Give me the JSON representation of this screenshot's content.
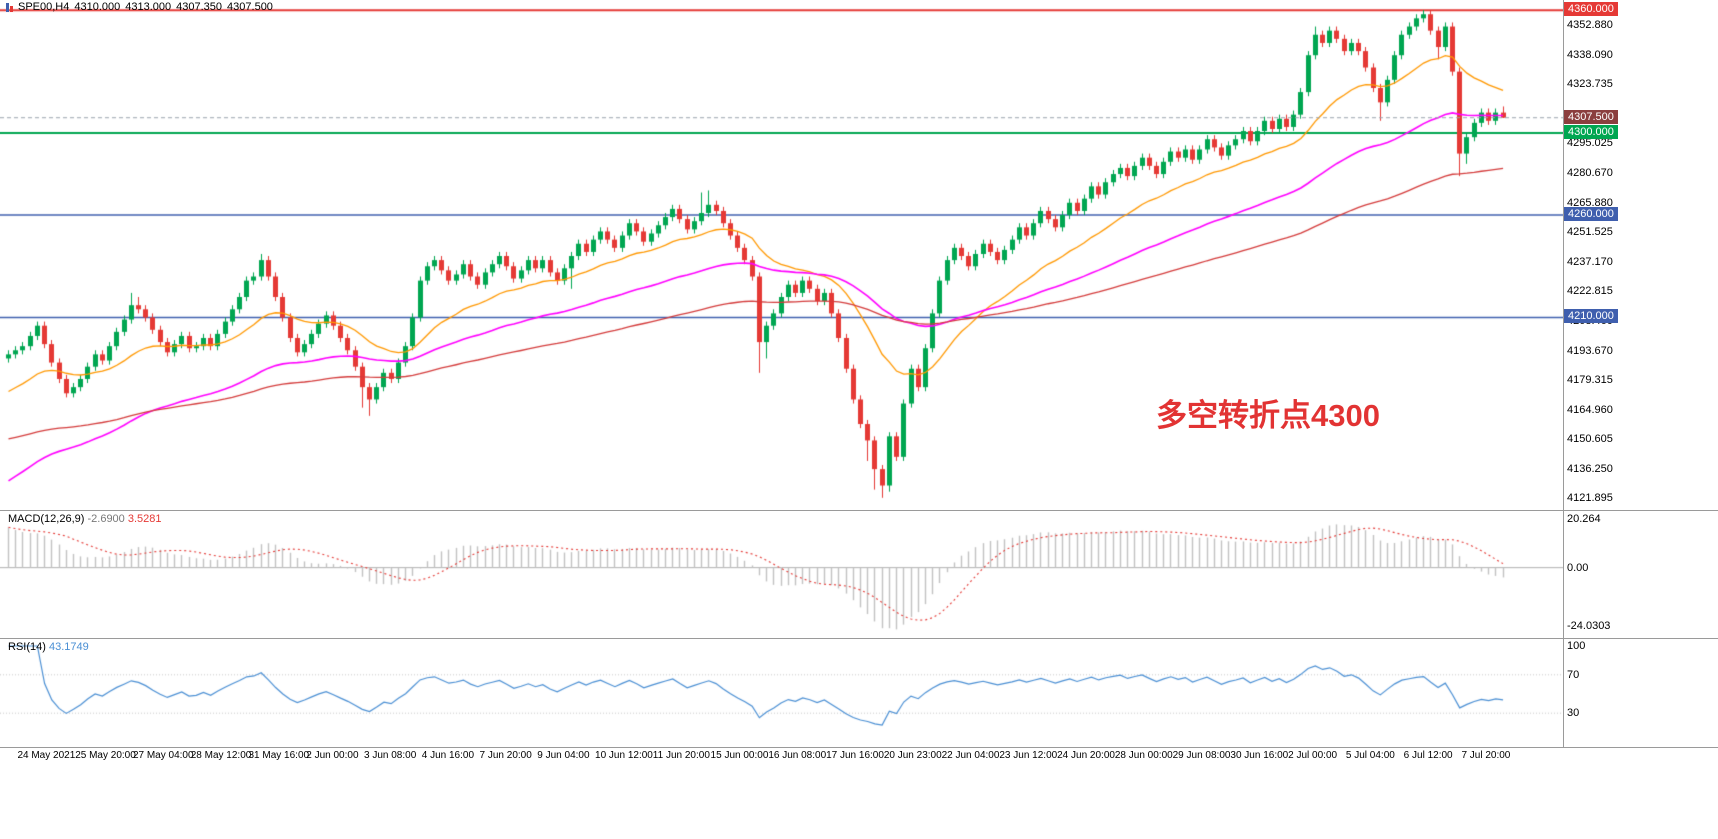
{
  "window": {
    "symbol_period": "SPE00,H4",
    "ohlc": {
      "open": "4310.000",
      "high": "4313.000",
      "low": "4307.350",
      "close": "4307.500"
    }
  },
  "annotation": {
    "text": "多空转折点4300",
    "color": "#e23333"
  },
  "colors": {
    "up_candle": "#00a651",
    "down_candle": "#e53935",
    "ma_fast": "#ff9800",
    "ma_mid": "#ff00ff",
    "ma_slow": "#d43b3b",
    "hline_red": "#e53935",
    "hline_green": "#00a651",
    "hline_blue": "#3f5fae",
    "bid_line": "#9aa4ae",
    "current_tag_bg": "#8b3e3e",
    "macd_hist": "#c2c2c2",
    "macd_signal": "#e53935",
    "rsi_line": "#4a8fd4",
    "separator": "#9a9a9a"
  },
  "price_axis": {
    "labels": [
      "4352.880",
      "4338.090",
      "4323.735",
      "4295.025",
      "4280.670",
      "4265.880",
      "4251.525",
      "4237.170",
      "4222.815",
      "4208.460",
      "4193.670",
      "4179.315",
      "4164.960",
      "4150.605",
      "4136.250",
      "4121.895"
    ],
    "tags": [
      {
        "text": "4360.000",
        "value": 4360,
        "type": "resistance-line-tag",
        "color": "#e53935"
      },
      {
        "text": "4307.500",
        "value": 4307.5,
        "type": "current-price-tag",
        "color": "#8b3e3e"
      },
      {
        "text": "4300.000",
        "value": 4300,
        "type": "pivot-line-tag",
        "color": "#00a651"
      },
      {
        "text": "4260.000",
        "value": 4260,
        "type": "support-line-tag",
        "color": "#3f5fae"
      },
      {
        "text": "4210.000",
        "value": 4210,
        "type": "support-line-tag",
        "color": "#3f5fae"
      }
    ]
  },
  "time_axis": {
    "labels": [
      "24 May 2021",
      "25 May 20:00",
      "27 May 04:00",
      "28 May 12:00",
      "31 May 16:00",
      "2 Jun 00:00",
      "3 Jun 08:00",
      "4 Jun 16:00",
      "7 Jun 20:00",
      "9 Jun 04:00",
      "10 Jun 12:00",
      "11 Jun 20:00",
      "15 Jun 00:00",
      "16 Jun 08:00",
      "17 Jun 16:00",
      "20 Jun 23:00",
      "22 Jun 04:00",
      "23 Jun 12:00",
      "24 Jun 20:00",
      "28 Jun 00:00",
      "29 Jun 08:00",
      "30 Jun 16:00",
      "2 Jul 00:00",
      "5 Jul 04:00",
      "6 Jul 12:00",
      "7 Jul 20:00"
    ]
  },
  "macd_pane": {
    "label": "MACD(12,26,9)",
    "main_value": "-2.6900",
    "signal_value": "3.5281",
    "axis_labels": [
      "20.264",
      "0.00",
      "-24.0303"
    ]
  },
  "rsi_pane": {
    "label": "RSI(14)",
    "value": "43.1749",
    "axis_labels": [
      "100",
      "70",
      "30"
    ]
  },
  "chart_data": {
    "type": "candlestick",
    "symbol": "SPE00",
    "timeframe": "H4",
    "title": "SPE00,H4 4310.000 4313.000 4307.350 4307.500",
    "ylim": [
      4118,
      4363
    ],
    "grid": false,
    "time_labels_every": 8,
    "first_label_index": 2,
    "hlines": [
      {
        "price": 4360,
        "color": "#e53935",
        "width": 2,
        "dash": false
      },
      {
        "price": 4307.5,
        "color": "#9aa4ae",
        "width": 1,
        "dash": true
      },
      {
        "price": 4300,
        "color": "#00a651",
        "width": 2,
        "dash": false
      },
      {
        "price": 4260,
        "color": "#3f5fae",
        "width": 1.5,
        "dash": false
      },
      {
        "price": 4210,
        "color": "#3f5fae",
        "width": 1.5,
        "dash": false
      }
    ],
    "moving_averages": [
      {
        "period": 20,
        "seed": 4172,
        "color": "#ff9800",
        "width": 1.3
      },
      {
        "period": 55,
        "seed": 4128,
        "color": "#ff00ff",
        "width": 1.6
      },
      {
        "period": 110,
        "seed": 4150,
        "color": "#d43b3b",
        "width": 1.3
      }
    ],
    "indicators": [
      {
        "type": "MACD",
        "fast": 12,
        "slow": 26,
        "signal": 9,
        "seed_fast": 4192,
        "seed_slow": 4174,
        "current_main": -2.69,
        "current_signal": 3.5281,
        "axis_range": [
          -24.0303,
          20.264
        ]
      },
      {
        "type": "RSI",
        "period": 14,
        "current": 43.1749,
        "levels": [
          70,
          30
        ],
        "axis_range": [
          0,
          100
        ]
      }
    ],
    "candles": [
      [
        4190,
        4194,
        4188,
        4192
      ],
      [
        4192,
        4196,
        4190,
        4194
      ],
      [
        4194,
        4198,
        4192,
        4196
      ],
      [
        4196,
        4203,
        4194,
        4201
      ],
      [
        4201,
        4208,
        4199,
        4206
      ],
      [
        4206,
        4208,
        4195,
        4197
      ],
      [
        4197,
        4199,
        4186,
        4188
      ],
      [
        4188,
        4190,
        4178,
        4180
      ],
      [
        4180,
        4182,
        4171,
        4173
      ],
      [
        4173,
        4178,
        4171,
        4176
      ],
      [
        4176,
        4182,
        4174,
        4180
      ],
      [
        4180,
        4188,
        4178,
        4186
      ],
      [
        4186,
        4194,
        4184,
        4192
      ],
      [
        4192,
        4194,
        4187,
        4189
      ],
      [
        4189,
        4198,
        4187,
        4196
      ],
      [
        4196,
        4205,
        4194,
        4203
      ],
      [
        4203,
        4211,
        4201,
        4209
      ],
      [
        4209,
        4222,
        4207,
        4216
      ],
      [
        4216,
        4220,
        4212,
        4214
      ],
      [
        4214,
        4216,
        4208,
        4210
      ],
      [
        4210,
        4212,
        4202,
        4204
      ],
      [
        4204,
        4206,
        4196,
        4198
      ],
      [
        4198,
        4200,
        4191,
        4193
      ],
      [
        4193,
        4199,
        4191,
        4197
      ],
      [
        4197,
        4203,
        4195,
        4201
      ],
      [
        4201,
        4203,
        4193,
        4195
      ],
      [
        4195,
        4198,
        4193,
        4196
      ],
      [
        4196,
        4202,
        4194,
        4200
      ],
      [
        4200,
        4202,
        4194,
        4196
      ],
      [
        4196,
        4204,
        4194,
        4202
      ],
      [
        4202,
        4210,
        4200,
        4208
      ],
      [
        4208,
        4216,
        4206,
        4214
      ],
      [
        4214,
        4222,
        4212,
        4220
      ],
      [
        4220,
        4230,
        4218,
        4228
      ],
      [
        4228,
        4232,
        4226,
        4230
      ],
      [
        4230,
        4241,
        4228,
        4238
      ],
      [
        4238,
        4240,
        4228,
        4230
      ],
      [
        4230,
        4232,
        4218,
        4220
      ],
      [
        4220,
        4222,
        4208,
        4210
      ],
      [
        4210,
        4212,
        4198,
        4200
      ],
      [
        4200,
        4202,
        4191,
        4193
      ],
      [
        4193,
        4199,
        4191,
        4197
      ],
      [
        4197,
        4204,
        4195,
        4202
      ],
      [
        4202,
        4209,
        4200,
        4207
      ],
      [
        4207,
        4213,
        4205,
        4211
      ],
      [
        4211,
        4213,
        4204,
        4206
      ],
      [
        4206,
        4208,
        4198,
        4200
      ],
      [
        4200,
        4202,
        4192,
        4194
      ],
      [
        4194,
        4196,
        4184,
        4186
      ],
      [
        4186,
        4188,
        4166,
        4176
      ],
      [
        4176,
        4178,
        4162,
        4170
      ],
      [
        4170,
        4178,
        4168,
        4176
      ],
      [
        4176,
        4185,
        4174,
        4183
      ],
      [
        4183,
        4185,
        4178,
        4180
      ],
      [
        4180,
        4190,
        4178,
        4188
      ],
      [
        4188,
        4198,
        4186,
        4196
      ],
      [
        4196,
        4212,
        4194,
        4210
      ],
      [
        4210,
        4230,
        4208,
        4228
      ],
      [
        4228,
        4237,
        4226,
        4235
      ],
      [
        4235,
        4240,
        4233,
        4238
      ],
      [
        4238,
        4240,
        4231,
        4233
      ],
      [
        4233,
        4235,
        4226,
        4228
      ],
      [
        4228,
        4233,
        4226,
        4231
      ],
      [
        4231,
        4238,
        4229,
        4236
      ],
      [
        4236,
        4238,
        4228,
        4230
      ],
      [
        4230,
        4232,
        4224,
        4226
      ],
      [
        4226,
        4234,
        4224,
        4232
      ],
      [
        4232,
        4238,
        4230,
        4236
      ],
      [
        4236,
        4242,
        4234,
        4240
      ],
      [
        4240,
        4242,
        4233,
        4235
      ],
      [
        4235,
        4237,
        4227,
        4229
      ],
      [
        4229,
        4235,
        4227,
        4233
      ],
      [
        4233,
        4240,
        4231,
        4238
      ],
      [
        4238,
        4240,
        4232,
        4234
      ],
      [
        4234,
        4240,
        4232,
        4238
      ],
      [
        4238,
        4240,
        4230,
        4232
      ],
      [
        4232,
        4234,
        4226,
        4228
      ],
      [
        4228,
        4236,
        4226,
        4234
      ],
      [
        4234,
        4242,
        4224,
        4240
      ],
      [
        4240,
        4248,
        4238,
        4246
      ],
      [
        4246,
        4248,
        4240,
        4242
      ],
      [
        4242,
        4250,
        4240,
        4248
      ],
      [
        4248,
        4254,
        4246,
        4252
      ],
      [
        4252,
        4254,
        4246,
        4248
      ],
      [
        4248,
        4250,
        4242,
        4244
      ],
      [
        4244,
        4252,
        4242,
        4250
      ],
      [
        4250,
        4258,
        4248,
        4256
      ],
      [
        4256,
        4258,
        4250,
        4252
      ],
      [
        4252,
        4254,
        4245,
        4247
      ],
      [
        4247,
        4253,
        4245,
        4251
      ],
      [
        4251,
        4257,
        4249,
        4255
      ],
      [
        4255,
        4261,
        4253,
        4259
      ],
      [
        4259,
        4265,
        4257,
        4263
      ],
      [
        4263,
        4265,
        4256,
        4258
      ],
      [
        4258,
        4260,
        4251,
        4253
      ],
      [
        4253,
        4259,
        4251,
        4257
      ],
      [
        4257,
        4271,
        4255,
        4261
      ],
      [
        4261,
        4272,
        4259,
        4265
      ],
      [
        4265,
        4267,
        4260,
        4262
      ],
      [
        4262,
        4264,
        4254,
        4256
      ],
      [
        4256,
        4258,
        4248,
        4250
      ],
      [
        4250,
        4252,
        4242,
        4244
      ],
      [
        4244,
        4246,
        4236,
        4238
      ],
      [
        4238,
        4240,
        4228,
        4230
      ],
      [
        4230,
        4232,
        4183,
        4198
      ],
      [
        4198,
        4208,
        4190,
        4206
      ],
      [
        4206,
        4214,
        4204,
        4212
      ],
      [
        4212,
        4222,
        4210,
        4220
      ],
      [
        4220,
        4228,
        4218,
        4226
      ],
      [
        4226,
        4228,
        4220,
        4222
      ],
      [
        4222,
        4230,
        4220,
        4228
      ],
      [
        4228,
        4230,
        4222,
        4224
      ],
      [
        4224,
        4226,
        4216,
        4218
      ],
      [
        4218,
        4224,
        4216,
        4222
      ],
      [
        4222,
        4224,
        4210,
        4212
      ],
      [
        4212,
        4214,
        4198,
        4200
      ],
      [
        4200,
        4202,
        4183,
        4185
      ],
      [
        4185,
        4187,
        4168,
        4170
      ],
      [
        4170,
        4172,
        4156,
        4158
      ],
      [
        4158,
        4160,
        4140,
        4150
      ],
      [
        4150,
        4152,
        4126,
        4136
      ],
      [
        4136,
        4138,
        4122,
        4128
      ],
      [
        4128,
        4154,
        4125,
        4152
      ],
      [
        4152,
        4154,
        4140,
        4142
      ],
      [
        4142,
        4170,
        4140,
        4168
      ],
      [
        4168,
        4187,
        4166,
        4185
      ],
      [
        4185,
        4187,
        4174,
        4176
      ],
      [
        4176,
        4197,
        4174,
        4195
      ],
      [
        4195,
        4214,
        4193,
        4212
      ],
      [
        4212,
        4230,
        4210,
        4228
      ],
      [
        4228,
        4240,
        4226,
        4238
      ],
      [
        4238,
        4246,
        4236,
        4244
      ],
      [
        4244,
        4246,
        4238,
        4240
      ],
      [
        4240,
        4242,
        4233,
        4235
      ],
      [
        4235,
        4243,
        4233,
        4241
      ],
      [
        4241,
        4248,
        4239,
        4246
      ],
      [
        4246,
        4248,
        4240,
        4242
      ],
      [
        4242,
        4244,
        4236,
        4238
      ],
      [
        4238,
        4245,
        4236,
        4243
      ],
      [
        4243,
        4250,
        4241,
        4248
      ],
      [
        4248,
        4256,
        4246,
        4254
      ],
      [
        4254,
        4256,
        4248,
        4250
      ],
      [
        4250,
        4258,
        4248,
        4256
      ],
      [
        4256,
        4264,
        4254,
        4262
      ],
      [
        4262,
        4264,
        4256,
        4258
      ],
      [
        4258,
        4260,
        4252,
        4254
      ],
      [
        4254,
        4262,
        4252,
        4260
      ],
      [
        4260,
        4268,
        4258,
        4266
      ],
      [
        4266,
        4268,
        4260,
        4262
      ],
      [
        4262,
        4270,
        4260,
        4268
      ],
      [
        4268,
        4276,
        4266,
        4274
      ],
      [
        4274,
        4276,
        4268,
        4270
      ],
      [
        4270,
        4278,
        4268,
        4276
      ],
      [
        4276,
        4282,
        4274,
        4280
      ],
      [
        4280,
        4285,
        4278,
        4283
      ],
      [
        4283,
        4285,
        4277,
        4279
      ],
      [
        4279,
        4286,
        4277,
        4284
      ],
      [
        4284,
        4290,
        4282,
        4288
      ],
      [
        4288,
        4290,
        4282,
        4284
      ],
      [
        4284,
        4286,
        4278,
        4280
      ],
      [
        4280,
        4288,
        4278,
        4286
      ],
      [
        4286,
        4293,
        4284,
        4291
      ],
      [
        4291,
        4293,
        4286,
        4288
      ],
      [
        4288,
        4294,
        4286,
        4292
      ],
      [
        4292,
        4294,
        4285,
        4287
      ],
      [
        4287,
        4294,
        4285,
        4292
      ],
      [
        4292,
        4299,
        4290,
        4297
      ],
      [
        4297,
        4299,
        4291,
        4293
      ],
      [
        4293,
        4295,
        4287,
        4289
      ],
      [
        4289,
        4296,
        4287,
        4294
      ],
      [
        4294,
        4299,
        4292,
        4297
      ],
      [
        4297,
        4303,
        4295,
        4301
      ],
      [
        4301,
        4303,
        4294,
        4296
      ],
      [
        4296,
        4303,
        4294,
        4301
      ],
      [
        4301,
        4308,
        4299,
        4306
      ],
      [
        4306,
        4308,
        4300,
        4302
      ],
      [
        4302,
        4309,
        4300,
        4307
      ],
      [
        4307,
        4309,
        4301,
        4303
      ],
      [
        4303,
        4311,
        4301,
        4309
      ],
      [
        4309,
        4322,
        4307,
        4320
      ],
      [
        4320,
        4340,
        4318,
        4338
      ],
      [
        4338,
        4352,
        4336,
        4348
      ],
      [
        4348,
        4350,
        4342,
        4344
      ],
      [
        4344,
        4352,
        4342,
        4350
      ],
      [
        4350,
        4352,
        4344,
        4346
      ],
      [
        4346,
        4348,
        4338,
        4340
      ],
      [
        4340,
        4346,
        4338,
        4344
      ],
      [
        4344,
        4346,
        4338,
        4340
      ],
      [
        4340,
        4342,
        4330,
        4332
      ],
      [
        4332,
        4334,
        4320,
        4322
      ],
      [
        4322,
        4324,
        4306,
        4315
      ],
      [
        4315,
        4328,
        4313,
        4326
      ],
      [
        4326,
        4340,
        4324,
        4338
      ],
      [
        4338,
        4350,
        4336,
        4348
      ],
      [
        4348,
        4354,
        4346,
        4352
      ],
      [
        4352,
        4358,
        4350,
        4356
      ],
      [
        4356,
        4360,
        4354,
        4358
      ],
      [
        4358,
        4360,
        4348,
        4350
      ],
      [
        4350,
        4352,
        4336,
        4342
      ],
      [
        4342,
        4354,
        4340,
        4352
      ],
      [
        4352,
        4354,
        4328,
        4330
      ],
      [
        4330,
        4332,
        4279,
        4290
      ],
      [
        4290,
        4300,
        4285,
        4298
      ],
      [
        4298,
        4307,
        4296,
        4305
      ],
      [
        4305,
        4312,
        4303,
        4310
      ],
      [
        4310,
        4312,
        4304,
        4306
      ],
      [
        4306,
        4312,
        4304,
        4310
      ],
      [
        4310,
        4313,
        4307.35,
        4307.5
      ]
    ]
  }
}
